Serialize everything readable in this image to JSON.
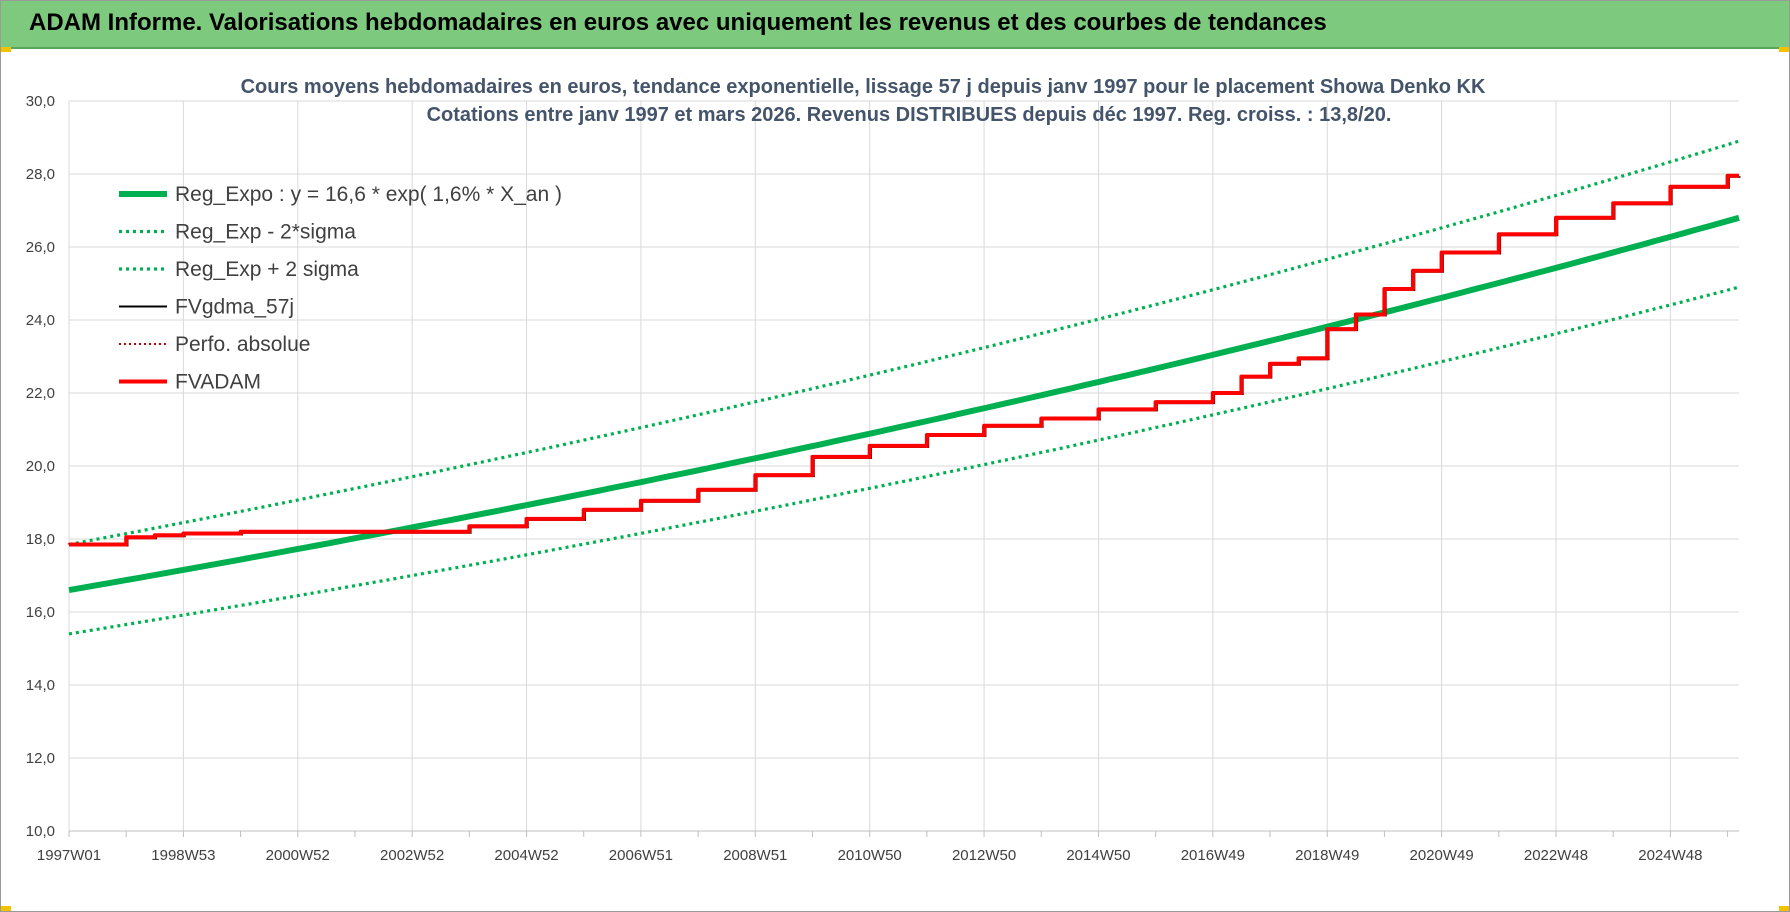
{
  "banner": {
    "title": "ADAM Informe. Valorisations hebdomadaires en euros avec uniquement les revenus et des courbes de tendances"
  },
  "colors": {
    "banner": "#7dc97d",
    "green": "#00b050",
    "red": "#ff0000",
    "black": "#000000",
    "dotted_red": "#c00000",
    "grid": "#d9d9d9"
  },
  "chart_data": {
    "type": "line",
    "title_line1": "Cours moyens hebdomadaires en euros, tendance exponentielle, lissage 57 j depuis janv 1997  pour le placement Showa Denko KK",
    "title_line2": "Cotations entre janv 1997 et mars 2026. Revenus DISTRIBUES depuis déc 1997. Reg. croiss. : 13,8/20.",
    "xlabel": "",
    "ylabel": "",
    "ylim": [
      10,
      30
    ],
    "xlim": [
      1997.0,
      2026.2
    ],
    "grid": true,
    "legend_placement": "top-left",
    "y_ticks": [
      "10,0",
      "12,0",
      "14,0",
      "16,0",
      "18,0",
      "20,0",
      "22,0",
      "24,0",
      "26,0",
      "28,0",
      "30,0"
    ],
    "x_ticks": [
      {
        "label": "1997W01",
        "x": 1997.0
      },
      {
        "label": "1998W53",
        "x": 1999.0
      },
      {
        "label": "2000W52",
        "x": 2001.0
      },
      {
        "label": "2002W52",
        "x": 2003.0
      },
      {
        "label": "2004W52",
        "x": 2005.0
      },
      {
        "label": "2006W51",
        "x": 2007.0
      },
      {
        "label": "2008W51",
        "x": 2009.0
      },
      {
        "label": "2010W50",
        "x": 2011.0
      },
      {
        "label": "2012W50",
        "x": 2013.0
      },
      {
        "label": "2014W50",
        "x": 2015.0
      },
      {
        "label": "2016W49",
        "x": 2017.0
      },
      {
        "label": "2018W49",
        "x": 2019.0
      },
      {
        "label": "2020W49",
        "x": 2021.0
      },
      {
        "label": "2022W48",
        "x": 2023.0
      },
      {
        "label": "2024W48",
        "x": 2025.0
      }
    ],
    "series": [
      {
        "name": "Reg_Expo : y = 16,6 * exp( 1,6% *  X_an )",
        "style": "solid-thick",
        "color": "#00b050",
        "x": [
          1997.0,
          2026.2
        ],
        "y": [
          16.6,
          26.8
        ]
      },
      {
        "name": "Reg_Exp - 2*sigma",
        "style": "dotted",
        "color": "#00b050",
        "x": [
          1997.0,
          2026.2
        ],
        "y": [
          15.4,
          24.9
        ]
      },
      {
        "name": "Reg_Exp + 2 sigma",
        "style": "dotted",
        "color": "#00b050",
        "x": [
          1997.0,
          2026.2
        ],
        "y": [
          17.85,
          28.9
        ]
      },
      {
        "name": "FVgdma_57j",
        "style": "solid-thin",
        "color": "#000000",
        "x": [],
        "y": []
      },
      {
        "name": "Perfo. absolue",
        "style": "dotted-thin",
        "color": "#c00000",
        "x": [],
        "y": []
      },
      {
        "name": "FVADAM",
        "style": "step",
        "color": "#ff0000",
        "x": [
          1997.0,
          1998.0,
          1998.5,
          1999.0,
          2000.0,
          2001.0,
          2002.0,
          2003.0,
          2004.0,
          2005.0,
          2006.0,
          2007.0,
          2008.0,
          2009.0,
          2010.0,
          2011.0,
          2012.0,
          2013.0,
          2014.0,
          2015.0,
          2016.0,
          2017.0,
          2017.5,
          2018.0,
          2018.5,
          2019.0,
          2019.5,
          2020.0,
          2020.5,
          2021.0,
          2022.0,
          2023.0,
          2024.0,
          2025.0,
          2026.0,
          2026.2
        ],
        "y": [
          17.85,
          18.05,
          18.1,
          18.15,
          18.2,
          18.2,
          18.2,
          18.2,
          18.35,
          18.55,
          18.8,
          19.05,
          19.35,
          19.75,
          20.25,
          20.55,
          20.85,
          21.1,
          21.3,
          21.55,
          21.75,
          22.0,
          22.45,
          22.8,
          22.95,
          23.75,
          24.15,
          24.85,
          25.35,
          25.85,
          26.35,
          26.8,
          27.2,
          27.65,
          27.95,
          27.95
        ]
      }
    ]
  }
}
